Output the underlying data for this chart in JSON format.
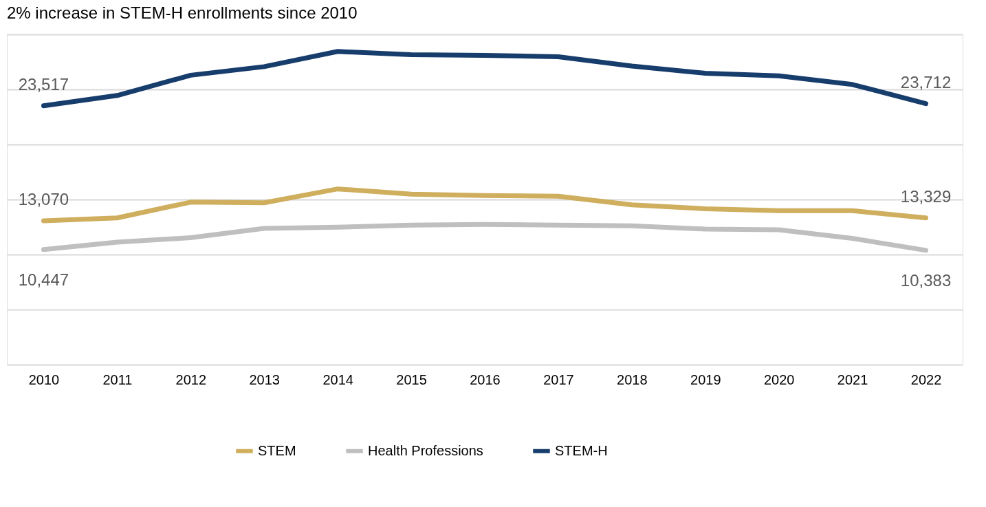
{
  "chart_data": {
    "type": "line",
    "title": "2% increase in STEM-H enrollments since 2010",
    "categories": [
      "2010",
      "2011",
      "2012",
      "2013",
      "2014",
      "2015",
      "2016",
      "2017",
      "2018",
      "2019",
      "2020",
      "2021",
      "2022"
    ],
    "series": [
      {
        "name": "STEM",
        "color": "#cfae5e",
        "values": [
          13070,
          13330,
          14760,
          14700,
          15960,
          15480,
          15360,
          15300,
          14520,
          14160,
          13980,
          13980,
          13329
        ],
        "value_labels": [
          "13,070",
          null,
          null,
          null,
          null,
          null,
          null,
          null,
          null,
          null,
          null,
          null,
          "13,329"
        ]
      },
      {
        "name": "Health Professions",
        "color": "#bfbfbf",
        "values": [
          10447,
          11120,
          11530,
          12370,
          12490,
          12670,
          12730,
          12670,
          12610,
          12310,
          12250,
          11470,
          10383
        ],
        "value_labels": [
          "10,447",
          null,
          null,
          null,
          null,
          null,
          null,
          null,
          null,
          null,
          null,
          null,
          "10,383"
        ]
      },
      {
        "name": "STEM-H",
        "color": "#173d6c",
        "values": [
          23517,
          24450,
          26290,
          27070,
          28450,
          28150,
          28090,
          27970,
          27130,
          26470,
          26230,
          25450,
          23712
        ],
        "value_labels": [
          "23,517",
          null,
          null,
          null,
          null,
          null,
          null,
          null,
          null,
          null,
          null,
          null,
          "23,712"
        ]
      }
    ],
    "ylim": [
      0,
      30000
    ],
    "yticks": [
      {
        "value": 0,
        "label": null
      },
      {
        "value": 5000,
        "label": null
      },
      {
        "value": 10000,
        "label": null
      },
      {
        "value": 15000,
        "label": null
      },
      {
        "value": 20000,
        "label": null
      },
      {
        "value": 25000,
        "label": null
      },
      {
        "value": 30000,
        "label": null
      }
    ],
    "tick_labels": "x",
    "grid": "y",
    "legend": "bottom",
    "marker": "none",
    "line_style": "solid"
  }
}
